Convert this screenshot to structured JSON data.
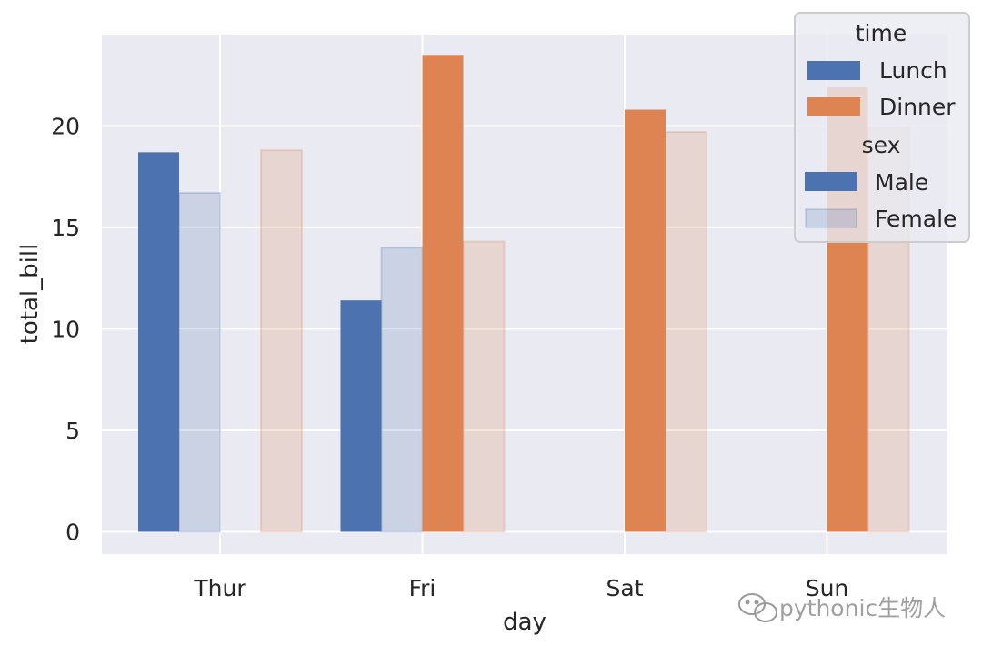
{
  "chart_data": {
    "type": "bar",
    "title": "",
    "xlabel": "day",
    "ylabel": "total_bill",
    "categories": [
      "Thur",
      "Fri",
      "Sat",
      "Sun"
    ],
    "ylim": [
      -1.1,
      24.5
    ],
    "yticks": [
      "0",
      "5",
      "10",
      "15",
      "20"
    ],
    "grid": true,
    "legend_placement": "top-right",
    "series": [
      {
        "time": "Lunch",
        "sex": "Male",
        "color": "#4C72B0",
        "alpha": 1.0,
        "values": [
          18.7,
          11.4,
          null,
          null
        ]
      },
      {
        "time": "Lunch",
        "sex": "Female",
        "color": "#4C72B0",
        "alpha": 0.2,
        "values": [
          16.7,
          14.0,
          null,
          null
        ]
      },
      {
        "time": "Dinner",
        "sex": "Male",
        "color": "#DD8452",
        "alpha": 1.0,
        "values": [
          null,
          23.5,
          20.8,
          21.9
        ]
      },
      {
        "time": "Dinner",
        "sex": "Female",
        "color": "#DD8452",
        "alpha": 0.2,
        "values": [
          18.8,
          14.3,
          19.7,
          19.9
        ]
      }
    ],
    "legend": {
      "time_title": "time",
      "time_items": [
        {
          "label": "Lunch",
          "color": "#4C72B0",
          "alpha": 1.0
        },
        {
          "label": "Dinner",
          "color": "#DD8452",
          "alpha": 1.0
        }
      ],
      "sex_title": "sex",
      "sex_items": [
        {
          "label": "Male",
          "color": "#4C72B0",
          "alpha": 1.0
        },
        {
          "label": "Female",
          "color": "#4C72B0",
          "alpha": 0.2
        }
      ]
    }
  },
  "watermark": {
    "text": "pythonic生物人"
  }
}
